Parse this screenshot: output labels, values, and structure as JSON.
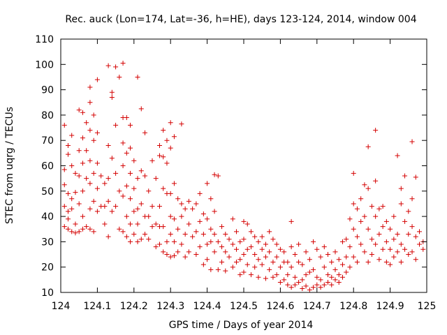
{
  "chart_data": {
    "type": "scatter",
    "title": "Rec. auck (Lon=174, Lat=-36, h=HE), days 123-124, 2014, window 004",
    "xlabel": "GPS time / Days of year 2014",
    "ylabel": "STEC from uqrg / TECUs",
    "xlim": [
      124,
      125
    ],
    "ylim": [
      10,
      110
    ],
    "xticks": [
      124,
      124.1,
      124.2,
      124.3,
      124.4,
      124.5,
      124.6,
      124.7,
      124.8,
      124.9,
      125
    ],
    "xtick_labels": [
      "124",
      "124.1",
      "124.2",
      "124.3",
      "124.4",
      "124.5",
      "124.6",
      "124.7",
      "124.8",
      "124.9",
      "125"
    ],
    "yticks": [
      10,
      20,
      30,
      40,
      50,
      60,
      70,
      80,
      90,
      100,
      110
    ],
    "ytick_labels": [
      "10",
      "20",
      "30",
      "40",
      "50",
      "60",
      "70",
      "80",
      "90",
      "100",
      "110"
    ],
    "grid": false,
    "marker": "plus",
    "marker_color": "#d40000",
    "points": [
      [
        124.01,
        76
      ],
      [
        124.01,
        58.5
      ],
      [
        124.01,
        52.5
      ],
      [
        124.01,
        44
      ],
      [
        124.01,
        36
      ],
      [
        124.02,
        68
      ],
      [
        124.02,
        64.5
      ],
      [
        124.02,
        49
      ],
      [
        124.02,
        42
      ],
      [
        124.02,
        39
      ],
      [
        124.02,
        35
      ],
      [
        124.03,
        72
      ],
      [
        124.03,
        60
      ],
      [
        124.03,
        47
      ],
      [
        124.03,
        43
      ],
      [
        124.03,
        34
      ],
      [
        124.04,
        57
      ],
      [
        124.04,
        49.5
      ],
      [
        124.04,
        37
      ],
      [
        124.04,
        33.5
      ],
      [
        124.05,
        82
      ],
      [
        124.05,
        66
      ],
      [
        124.05,
        56
      ],
      [
        124.05,
        45
      ],
      [
        124.05,
        34
      ],
      [
        124.06,
        81
      ],
      [
        124.06,
        71
      ],
      [
        124.06,
        61
      ],
      [
        124.06,
        50
      ],
      [
        124.06,
        40
      ],
      [
        124.06,
        35
      ],
      [
        124.07,
        77
      ],
      [
        124.07,
        66
      ],
      [
        124.07,
        55
      ],
      [
        124.07,
        36
      ],
      [
        124.08,
        91
      ],
      [
        124.08,
        85
      ],
      [
        124.08,
        74
      ],
      [
        124.08,
        62
      ],
      [
        124.08,
        53
      ],
      [
        124.08,
        43
      ],
      [
        124.08,
        35
      ],
      [
        124.09,
        80
      ],
      [
        124.09,
        70
      ],
      [
        124.09,
        57
      ],
      [
        124.09,
        46
      ],
      [
        124.09,
        34
      ],
      [
        124.1,
        94
      ],
      [
        124.1,
        73
      ],
      [
        124.1,
        61
      ],
      [
        124.1,
        51
      ],
      [
        124.1,
        42
      ],
      [
        124.11,
        56
      ],
      [
        124.11,
        44
      ],
      [
        124.12,
        53
      ],
      [
        124.12,
        44
      ],
      [
        124.12,
        37
      ],
      [
        124.13,
        99.5
      ],
      [
        124.13,
        68
      ],
      [
        124.13,
        55
      ],
      [
        124.13,
        46
      ],
      [
        124.13,
        32
      ],
      [
        124.14,
        89
      ],
      [
        124.14,
        87
      ],
      [
        124.14,
        63
      ],
      [
        124.14,
        42
      ],
      [
        124.15,
        99
      ],
      [
        124.15,
        76
      ],
      [
        124.15,
        57
      ],
      [
        124.15,
        44
      ],
      [
        124.16,
        95
      ],
      [
        124.16,
        50
      ],
      [
        124.16,
        35
      ],
      [
        124.17,
        100.5
      ],
      [
        124.17,
        79
      ],
      [
        124.17,
        69
      ],
      [
        124.17,
        60
      ],
      [
        124.17,
        48
      ],
      [
        124.17,
        34
      ],
      [
        124.18,
        79
      ],
      [
        124.18,
        65
      ],
      [
        124.18,
        52
      ],
      [
        124.18,
        40
      ],
      [
        124.18,
        32
      ],
      [
        124.19,
        76
      ],
      [
        124.19,
        67
      ],
      [
        124.19,
        57
      ],
      [
        124.19,
        47
      ],
      [
        124.19,
        37
      ],
      [
        124.19,
        30
      ],
      [
        124.2,
        62
      ],
      [
        124.2,
        51
      ],
      [
        124.2,
        42
      ],
      [
        124.2,
        33
      ],
      [
        124.21,
        95
      ],
      [
        124.21,
        55
      ],
      [
        124.21,
        43
      ],
      [
        124.21,
        37
      ],
      [
        124.21,
        30
      ],
      [
        124.22,
        82.5
      ],
      [
        124.22,
        58
      ],
      [
        124.22,
        45
      ],
      [
        124.22,
        31
      ],
      [
        124.23,
        73
      ],
      [
        124.23,
        56
      ],
      [
        124.23,
        40
      ],
      [
        124.23,
        33
      ],
      [
        124.24,
        50
      ],
      [
        124.24,
        40
      ],
      [
        124.24,
        31
      ],
      [
        124.25,
        62
      ],
      [
        124.25,
        44
      ],
      [
        124.25,
        36
      ],
      [
        124.26,
        55
      ],
      [
        124.26,
        37
      ],
      [
        124.26,
        28
      ],
      [
        124.27,
        68
      ],
      [
        124.27,
        64
      ],
      [
        124.27,
        44
      ],
      [
        124.27,
        36
      ],
      [
        124.27,
        29
      ],
      [
        124.28,
        74
      ],
      [
        124.28,
        63.5
      ],
      [
        124.28,
        51
      ],
      [
        124.28,
        36
      ],
      [
        124.28,
        26
      ],
      [
        124.29,
        70
      ],
      [
        124.29,
        61
      ],
      [
        124.29,
        49
      ],
      [
        124.29,
        30
      ],
      [
        124.29,
        25
      ],
      [
        124.3,
        77
      ],
      [
        124.3,
        67
      ],
      [
        124.3,
        49
      ],
      [
        124.3,
        40
      ],
      [
        124.3,
        33
      ],
      [
        124.3,
        24
      ],
      [
        124.31,
        71.5
      ],
      [
        124.31,
        53
      ],
      [
        124.31,
        39
      ],
      [
        124.31,
        30
      ],
      [
        124.31,
        24.5
      ],
      [
        124.32,
        47
      ],
      [
        124.32,
        35
      ],
      [
        124.32,
        26
      ],
      [
        124.33,
        76.5
      ],
      [
        124.33,
        45
      ],
      [
        124.33,
        40
      ],
      [
        124.33,
        29
      ],
      [
        124.34,
        43
      ],
      [
        124.34,
        33
      ],
      [
        124.34,
        24
      ],
      [
        124.35,
        46
      ],
      [
        124.35,
        37
      ],
      [
        124.35,
        26
      ],
      [
        124.36,
        43
      ],
      [
        124.36,
        32
      ],
      [
        124.37,
        45
      ],
      [
        124.37,
        34
      ],
      [
        124.37,
        25
      ],
      [
        124.38,
        49
      ],
      [
        124.38,
        38
      ],
      [
        124.38,
        28
      ],
      [
        124.39,
        41
      ],
      [
        124.39,
        33
      ],
      [
        124.39,
        21
      ],
      [
        124.4,
        53
      ],
      [
        124.4,
        39
      ],
      [
        124.4,
        29
      ],
      [
        124.4,
        23
      ],
      [
        124.41,
        47
      ],
      [
        124.41,
        35
      ],
      [
        124.41,
        30
      ],
      [
        124.41,
        19
      ],
      [
        124.42,
        56.5
      ],
      [
        124.42,
        42
      ],
      [
        124.42,
        33
      ],
      [
        124.42,
        26
      ],
      [
        124.43,
        56
      ],
      [
        124.43,
        30
      ],
      [
        124.43,
        19
      ],
      [
        124.44,
        36
      ],
      [
        124.44,
        28
      ],
      [
        124.44,
        22
      ],
      [
        124.45,
        33
      ],
      [
        124.45,
        26
      ],
      [
        124.45,
        18.5
      ],
      [
        124.46,
        31
      ],
      [
        124.46,
        24
      ],
      [
        124.47,
        39
      ],
      [
        124.47,
        29
      ],
      [
        124.47,
        20
      ],
      [
        124.48,
        34
      ],
      [
        124.48,
        27
      ],
      [
        124.48,
        22
      ],
      [
        124.49,
        30
      ],
      [
        124.49,
        23
      ],
      [
        124.49,
        17
      ],
      [
        124.5,
        38
      ],
      [
        124.5,
        31
      ],
      [
        124.5,
        25
      ],
      [
        124.5,
        18
      ],
      [
        124.51,
        37
      ],
      [
        124.51,
        27
      ],
      [
        124.51,
        21
      ],
      [
        124.52,
        34
      ],
      [
        124.52,
        28
      ],
      [
        124.52,
        17
      ],
      [
        124.53,
        32
      ],
      [
        124.53,
        25
      ],
      [
        124.53,
        20
      ],
      [
        124.54,
        30
      ],
      [
        124.54,
        23
      ],
      [
        124.54,
        16
      ],
      [
        124.55,
        32
      ],
      [
        124.55,
        27
      ],
      [
        124.55,
        21
      ],
      [
        124.56,
        29
      ],
      [
        124.56,
        24
      ],
      [
        124.56,
        15.5
      ],
      [
        124.57,
        34
      ],
      [
        124.57,
        26
      ],
      [
        124.57,
        19
      ],
      [
        124.58,
        31
      ],
      [
        124.58,
        22
      ],
      [
        124.58,
        16
      ],
      [
        124.59,
        29
      ],
      [
        124.59,
        24
      ],
      [
        124.59,
        17
      ],
      [
        124.6,
        27
      ],
      [
        124.6,
        20
      ],
      [
        124.6,
        14
      ],
      [
        124.61,
        26
      ],
      [
        124.61,
        22
      ],
      [
        124.61,
        15
      ],
      [
        124.62,
        22
      ],
      [
        124.62,
        17
      ],
      [
        124.62,
        13
      ],
      [
        124.63,
        38
      ],
      [
        124.63,
        28
      ],
      [
        124.63,
        20
      ],
      [
        124.63,
        12
      ],
      [
        124.64,
        25
      ],
      [
        124.64,
        16
      ],
      [
        124.64,
        13
      ],
      [
        124.65,
        29
      ],
      [
        124.65,
        22
      ],
      [
        124.65,
        14
      ],
      [
        124.66,
        21
      ],
      [
        124.66,
        15
      ],
      [
        124.66,
        11.5
      ],
      [
        124.67,
        26
      ],
      [
        124.67,
        17
      ],
      [
        124.67,
        12.5
      ],
      [
        124.68,
        23
      ],
      [
        124.68,
        18
      ],
      [
        124.68,
        11
      ],
      [
        124.69,
        30
      ],
      [
        124.69,
        19
      ],
      [
        124.69,
        12
      ],
      [
        124.7,
        27
      ],
      [
        124.7,
        16
      ],
      [
        124.7,
        13
      ],
      [
        124.71,
        24
      ],
      [
        124.71,
        15
      ],
      [
        124.71,
        12
      ],
      [
        124.72,
        28
      ],
      [
        124.72,
        20
      ],
      [
        124.72,
        13
      ],
      [
        124.73,
        25
      ],
      [
        124.73,
        17
      ],
      [
        124.73,
        14
      ],
      [
        124.74,
        22
      ],
      [
        124.74,
        16
      ],
      [
        124.74,
        13
      ],
      [
        124.75,
        26
      ],
      [
        124.75,
        19
      ],
      [
        124.75,
        15
      ],
      [
        124.76,
        23
      ],
      [
        124.76,
        17
      ],
      [
        124.76,
        14
      ],
      [
        124.77,
        30
      ],
      [
        124.77,
        21
      ],
      [
        124.77,
        16
      ],
      [
        124.78,
        31
      ],
      [
        124.78,
        24
      ],
      [
        124.78,
        18
      ],
      [
        124.79,
        39
      ],
      [
        124.79,
        28
      ],
      [
        124.79,
        20
      ],
      [
        124.8,
        57
      ],
      [
        124.8,
        45
      ],
      [
        124.8,
        35
      ],
      [
        124.8,
        24
      ],
      [
        124.81,
        43
      ],
      [
        124.81,
        32
      ],
      [
        124.81,
        22
      ],
      [
        124.82,
        47
      ],
      [
        124.82,
        38
      ],
      [
        124.82,
        29
      ],
      [
        124.83,
        52.5
      ],
      [
        124.83,
        40
      ],
      [
        124.83,
        26
      ],
      [
        124.84,
        67.5
      ],
      [
        124.84,
        51
      ],
      [
        124.84,
        35
      ],
      [
        124.84,
        22
      ],
      [
        124.85,
        44
      ],
      [
        124.85,
        31
      ],
      [
        124.85,
        25
      ],
      [
        124.86,
        74
      ],
      [
        124.86,
        54
      ],
      [
        124.86,
        40
      ],
      [
        124.86,
        29
      ],
      [
        124.87,
        43
      ],
      [
        124.87,
        33
      ],
      [
        124.87,
        23
      ],
      [
        124.88,
        44
      ],
      [
        124.88,
        36
      ],
      [
        124.88,
        27
      ],
      [
        124.89,
        38
      ],
      [
        124.89,
        30
      ],
      [
        124.89,
        22
      ],
      [
        124.9,
        35
      ],
      [
        124.9,
        27
      ],
      [
        124.9,
        21
      ],
      [
        124.91,
        40
      ],
      [
        124.91,
        31
      ],
      [
        124.91,
        24
      ],
      [
        124.92,
        64
      ],
      [
        124.92,
        33
      ],
      [
        124.92,
        26
      ],
      [
        124.93,
        51
      ],
      [
        124.93,
        45
      ],
      [
        124.93,
        29
      ],
      [
        124.93,
        22
      ],
      [
        124.94,
        56
      ],
      [
        124.94,
        38
      ],
      [
        124.94,
        27
      ],
      [
        124.95,
        42
      ],
      [
        124.95,
        33
      ],
      [
        124.95,
        25
      ],
      [
        124.96,
        69.5
      ],
      [
        124.96,
        47
      ],
      [
        124.96,
        36
      ],
      [
        124.96,
        26
      ],
      [
        124.97,
        55.5
      ],
      [
        124.97,
        32
      ],
      [
        124.97,
        23
      ],
      [
        124.98,
        34
      ],
      [
        124.98,
        29
      ],
      [
        124.99,
        30
      ],
      [
        124.99,
        27
      ]
    ]
  }
}
